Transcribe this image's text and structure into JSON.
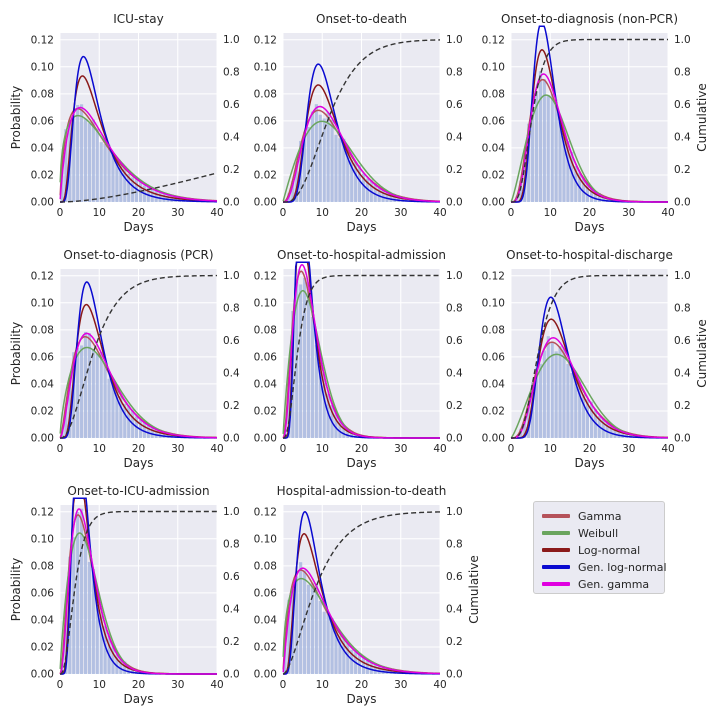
{
  "panels_meta": {
    "x_ticks": [
      "0",
      "10",
      "20",
      "30",
      "40"
    ],
    "y_ticks": [
      "0.00",
      "0.02",
      "0.04",
      "0.06",
      "0.08",
      "0.10",
      "0.12"
    ],
    "y2_ticks": [
      "0.0",
      "0.2",
      "0.4",
      "0.6",
      "0.8",
      "1.0"
    ]
  },
  "legend": {
    "items": [
      {
        "label": "Gamma",
        "color": "#b5525a"
      },
      {
        "label": "Weibull",
        "color": "#6aa55e"
      },
      {
        "label": "Log-normal",
        "color": "#8b1a1a"
      },
      {
        "label": "Gen. log-normal",
        "color": "#0a0ad0"
      },
      {
        "label": "Gen. gamma",
        "color": "#e000e0"
      }
    ]
  },
  "chart_data": [
    {
      "type": "line",
      "title": "ICU-stay",
      "xlabel": "Days",
      "ylabel": "Probability",
      "y2label": "",
      "xlim": [
        0,
        40
      ],
      "ylim": [
        0,
        0.125
      ],
      "y2lim": [
        0,
        1.04
      ],
      "grid": true,
      "secondary_axis": "cumulative (dashed)",
      "dist": "gamma",
      "shape": 1.75,
      "scale": 6.0,
      "cdf_scale": 11.0
    },
    {
      "type": "line",
      "title": "Onset-to-death",
      "xlabel": "Days",
      "ylabel": "",
      "y2label": "",
      "xlim": [
        0,
        40
      ],
      "ylim": [
        0,
        0.125
      ],
      "y2lim": [
        0,
        1.04
      ],
      "grid": true,
      "secondary_axis": "cumulative (dashed)",
      "dist": "gamma",
      "shape": 3.5,
      "scale": 3.6,
      "cdf_scale": 1.0
    },
    {
      "type": "line",
      "title": "Onset-to-diagnosis (non-PCR)",
      "xlabel": "Days",
      "ylabel": "",
      "y2label": "Cumulative",
      "xlim": [
        0,
        40
      ],
      "ylim": [
        0,
        0.125
      ],
      "y2lim": [
        0,
        1.04
      ],
      "grid": true,
      "secondary_axis": "cumulative (dashed)",
      "dist": "gamma",
      "shape": 4.5,
      "scale": 2.3,
      "cdf_scale": 0.55
    },
    {
      "type": "line",
      "title": "Onset-to-diagnosis (PCR)",
      "xlabel": "Days",
      "ylabel": "Probability",
      "y2label": "",
      "xlim": [
        0,
        40
      ],
      "ylim": [
        0,
        0.125
      ],
      "y2lim": [
        0,
        1.04
      ],
      "grid": true,
      "secondary_axis": "cumulative (dashed)",
      "dist": "gamma",
      "shape": 2.6,
      "scale": 4.0,
      "cdf_scale": 0.9
    },
    {
      "type": "line",
      "title": "Onset-to-hospital-admission",
      "xlabel": "Days",
      "ylabel": "",
      "y2label": "",
      "xlim": [
        0,
        40
      ],
      "ylim": [
        0,
        0.125
      ],
      "y2lim": [
        0,
        1.04
      ],
      "grid": true,
      "secondary_axis": "cumulative (dashed)",
      "dist": "gamma",
      "shape": 3.2,
      "scale": 2.1,
      "cdf_scale": 0.6
    },
    {
      "type": "line",
      "title": "Onset-to-hospital-discharge",
      "xlabel": "Days",
      "ylabel": "",
      "y2label": "Cumulative",
      "xlim": [
        0,
        40
      ],
      "ylim": [
        0,
        0.125
      ],
      "y2lim": [
        0,
        1.04
      ],
      "grid": true,
      "secondary_axis": "cumulative (dashed)",
      "dist": "gamma",
      "shape": 4.6,
      "scale": 2.9,
      "cdf_scale": 0.55
    },
    {
      "type": "line",
      "title": "Onset-to-ICU-admission",
      "xlabel": "Days",
      "ylabel": "Probability",
      "y2label": "",
      "xlim": [
        0,
        40
      ],
      "ylim": [
        0,
        0.125
      ],
      "y2lim": [
        0,
        1.04
      ],
      "grid": true,
      "secondary_axis": "cumulative (dashed)",
      "dist": "gamma",
      "shape": 3.0,
      "scale": 2.3,
      "cdf_scale": 0.6
    },
    {
      "type": "line",
      "title": "Hospital-admission-to-death",
      "xlabel": "Days",
      "ylabel": "",
      "y2label": "Cumulative",
      "xlim": [
        0,
        40
      ],
      "ylim": [
        0,
        0.125
      ],
      "y2lim": [
        0,
        1.04
      ],
      "grid": true,
      "secondary_axis": "cumulative (dashed)",
      "dist": "gamma",
      "shape": 1.9,
      "scale": 5.0,
      "cdf_scale": 1.0
    }
  ]
}
